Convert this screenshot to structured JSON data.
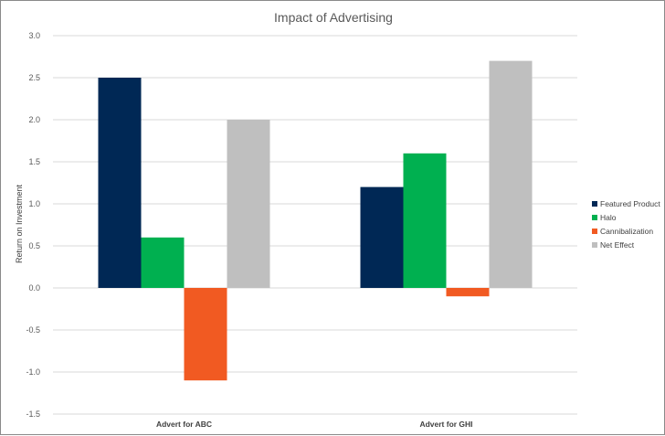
{
  "chart_data": {
    "type": "bar",
    "title": "Impact of Advertising",
    "xlabel": "",
    "ylabel": "Return on Investment",
    "categories": [
      "Advert for ABC",
      "Advert for GHI"
    ],
    "series": [
      {
        "name": "Featured Product",
        "color": "#002855",
        "values": [
          2.5,
          1.2
        ]
      },
      {
        "name": "Halo",
        "color": "#00b050",
        "values": [
          0.6,
          1.6
        ]
      },
      {
        "name": "Cannibalization",
        "color": "#f15a22",
        "values": [
          -1.1,
          -0.1
        ]
      },
      {
        "name": "Net Effect",
        "color": "#bfbfbf",
        "values": [
          2.0,
          2.7
        ]
      }
    ],
    "ylim": [
      -1.5,
      3.0
    ],
    "yticks": [
      "3.0",
      "2.5",
      "2.0",
      "1.5",
      "1.0",
      "0.5",
      "0.0",
      "-0.5",
      "-1.0",
      "-1.5"
    ],
    "ytick_values": [
      3.0,
      2.5,
      2.0,
      1.5,
      1.0,
      0.5,
      0.0,
      -0.5,
      -1.0,
      -1.5
    ],
    "grid": true,
    "legend_position": "right"
  }
}
